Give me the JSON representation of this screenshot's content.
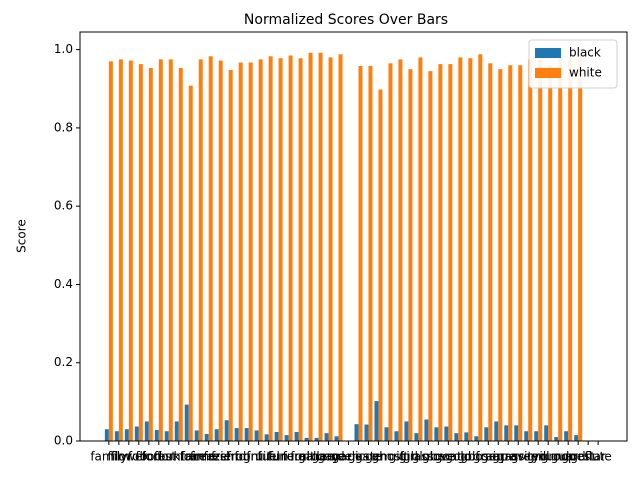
{
  "chart_data": {
    "type": "bar",
    "title": "Normalized Scores Over Bars",
    "y_label": "Score",
    "categories": [
      "family",
      "film",
      "flower",
      "folk",
      "food",
      "forest",
      "fork",
      "fountain",
      "fox",
      "frame",
      "freeze",
      "fresh",
      "friend",
      "frog",
      "front",
      "fruit",
      "fuel",
      "fun",
      "funeral",
      "fur",
      "furniture",
      "gallery",
      "game",
      "garden",
      "garlic",
      "gas",
      "gate",
      "gem",
      "ghost",
      "gift",
      "girl",
      "glass",
      "globe",
      "glove",
      "goat",
      "gold",
      "golf",
      "goose",
      "grain",
      "grape",
      "grass",
      "gravity",
      "green",
      "grill",
      "ground",
      "group",
      "guard",
      "guest",
      "guitar",
      "flute"
    ],
    "series": [
      {
        "name": "black",
        "color": "#1f77b4",
        "values": [
          0.03,
          0.025,
          0.03,
          0.037,
          0.05,
          0.028,
          0.025,
          0.05,
          0.093,
          0.027,
          0.018,
          0.03,
          0.053,
          0.033,
          0.033,
          0.027,
          0.017,
          0.023,
          0.015,
          0.023,
          0.008,
          0.008,
          0.02,
          0.012,
          null,
          0.043,
          0.042,
          0.102,
          0.035,
          0.025,
          0.05,
          0.02,
          0.055,
          0.035,
          0.037,
          0.02,
          0.022,
          0.012,
          0.035,
          0.05,
          0.04,
          0.04,
          0.025,
          0.025,
          0.04,
          0.01,
          0.025,
          0.015,
          null,
          null
        ]
      },
      {
        "name": "white",
        "color": "#ff7f0e",
        "values": [
          0.97,
          0.975,
          0.972,
          0.963,
          0.953,
          0.975,
          0.975,
          0.953,
          0.908,
          0.975,
          0.983,
          0.972,
          0.948,
          0.967,
          0.967,
          0.975,
          0.983,
          0.978,
          0.985,
          0.978,
          0.992,
          0.992,
          0.98,
          0.988,
          null,
          0.958,
          0.958,
          0.898,
          0.965,
          0.975,
          0.95,
          0.98,
          0.945,
          0.963,
          0.963,
          0.98,
          0.978,
          0.988,
          0.965,
          0.95,
          0.96,
          0.96,
          0.975,
          0.975,
          0.96,
          0.99,
          0.975,
          0.985,
          null,
          null
        ]
      }
    ],
    "ylim": [
      0,
      1.045
    ],
    "yticks": [
      {
        "value": 0,
        "label": "0.0"
      },
      {
        "value": 0.2,
        "label": "0.2"
      },
      {
        "value": 0.4,
        "label": "0.4"
      },
      {
        "value": 0.6,
        "label": "0.6"
      },
      {
        "value": 0.8,
        "label": "0.8"
      },
      {
        "value": 1.0,
        "label": "1.0"
      }
    ],
    "legend": "upper right",
    "grid": false
  }
}
